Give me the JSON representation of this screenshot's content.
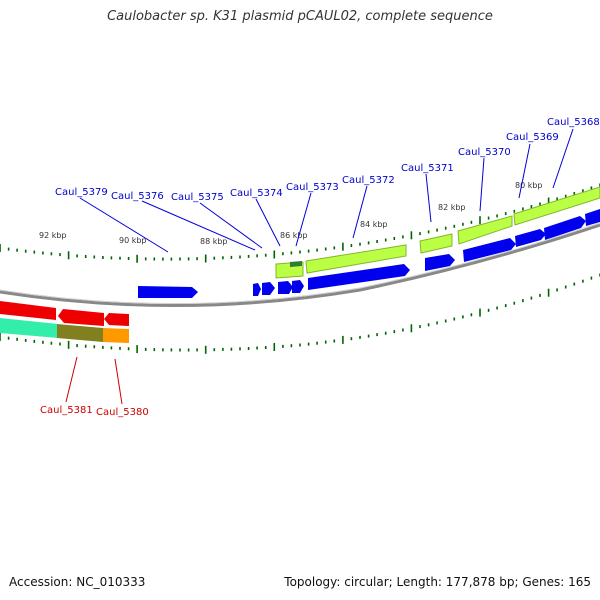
{
  "title": "Caulobacter sp. K31 plasmid pCAUL02, complete sequence",
  "footer": {
    "accession": "Accession: NC_010333",
    "genome_info": "Topology: circular; Length: 177,878 bp; Genes: 165"
  },
  "kbp_labels": [
    "92 kbp",
    "90 kbp",
    "88 kbp",
    "86 kbp",
    "84 kbp",
    "82 kbp",
    "80 kbp"
  ],
  "gene_labels_top": [
    "Caul_5379",
    "Caul_5376",
    "Caul_5375",
    "Caul_5374",
    "Caul_5373",
    "Caul_5372",
    "Caul_5371",
    "Caul_5370",
    "Caul_5369",
    "Caul_5368"
  ],
  "gene_labels_bottom": [
    "Caul_5381",
    "Caul_5380"
  ],
  "colors": {
    "backbone": "#8c8c8c",
    "forward_gene": "#0000ee",
    "reverse_gene": "#ee0000",
    "label_forward": "#0000cc",
    "label_reverse": "#cc0000",
    "cog_light_green": "#bbff44",
    "cog_dark_green": "#2e7d32",
    "cog_teal": "#33eeaa",
    "cog_olive": "#808020",
    "cog_orange": "#ff9900",
    "tick": "#006600"
  }
}
